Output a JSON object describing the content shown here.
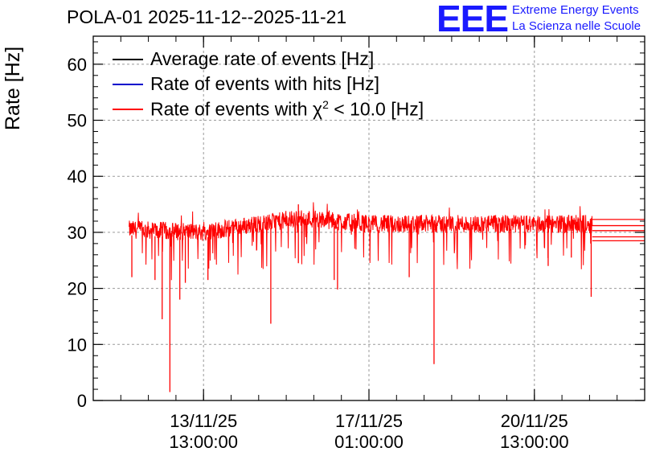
{
  "header": {
    "title": "POLA-01 2025-11-12--2025-11-21",
    "logo_text": "EEE",
    "org_line1": "Extreme Energy Events",
    "org_line2": "La Scienza nelle Scuole"
  },
  "chart_data": {
    "type": "line",
    "title": "POLA-01 2025-11-12--2025-11-21",
    "ylabel": "Rate [Hz]",
    "xlabel": "",
    "ylim": [
      0,
      65
    ],
    "xlim_days": [
      0.0,
      10.0
    ],
    "grid": true,
    "legend_position": "top-left",
    "yticks": [
      0,
      10,
      20,
      30,
      40,
      50,
      60
    ],
    "xticks": [
      {
        "day": 2.0,
        "date": "13/11/25",
        "time": "13:00:00"
      },
      {
        "day": 5.0,
        "date": "17/11/25",
        "time": "01:00:00"
      },
      {
        "day": 8.0,
        "date": "20/11/25",
        "time": "13:00:00"
      }
    ],
    "legend": [
      {
        "label": "Average rate of events [Hz]",
        "color": "#000000"
      },
      {
        "label": "Rate of events with hits [Hz]",
        "color": "#0000cc"
      },
      {
        "label_main": "Rate of events with ",
        "label_chi": "χ",
        "label_sup": "2",
        "label_tail": " < 10.0 [Hz]",
        "color": "#ff0000"
      }
    ],
    "series": [
      {
        "name": "Rate of events with chi2 < 10.0",
        "color": "#ff0000",
        "x_start_day": 0.65,
        "x_end_day": 9.05,
        "baseline": [
          {
            "day": 0.65,
            "value": 30.5
          },
          {
            "day": 2.0,
            "value": 30.0
          },
          {
            "day": 3.0,
            "value": 31.5
          },
          {
            "day": 3.8,
            "value": 32.5
          },
          {
            "day": 5.0,
            "value": 31.5
          },
          {
            "day": 7.0,
            "value": 31.5
          },
          {
            "day": 9.05,
            "value": 31.5
          }
        ],
        "noise_band": 1.6,
        "dips": [
          {
            "day": 0.7,
            "value": 22.0
          },
          {
            "day": 1.12,
            "value": 21.5
          },
          {
            "day": 1.25,
            "value": 14.5
          },
          {
            "day": 1.39,
            "value": 1.5
          },
          {
            "day": 1.57,
            "value": 18.0
          },
          {
            "day": 1.67,
            "value": 21.0
          },
          {
            "day": 2.08,
            "value": 21.5
          },
          {
            "day": 3.22,
            "value": 13.7
          },
          {
            "day": 3.72,
            "value": 24.5
          },
          {
            "day": 4.37,
            "value": 21.5
          },
          {
            "day": 4.43,
            "value": 19.8
          },
          {
            "day": 5.73,
            "value": 22.0
          },
          {
            "day": 6.18,
            "value": 6.5
          },
          {
            "day": 8.25,
            "value": 24.0
          },
          {
            "day": 8.67,
            "value": 25.5
          },
          {
            "day": 9.03,
            "value": 18.5
          }
        ],
        "flat_tails": [
          28.5,
          29.2,
          30.3,
          31.2,
          32.3
        ],
        "peak": {
          "day": 3.72,
          "value": 35.0
        }
      }
    ]
  }
}
